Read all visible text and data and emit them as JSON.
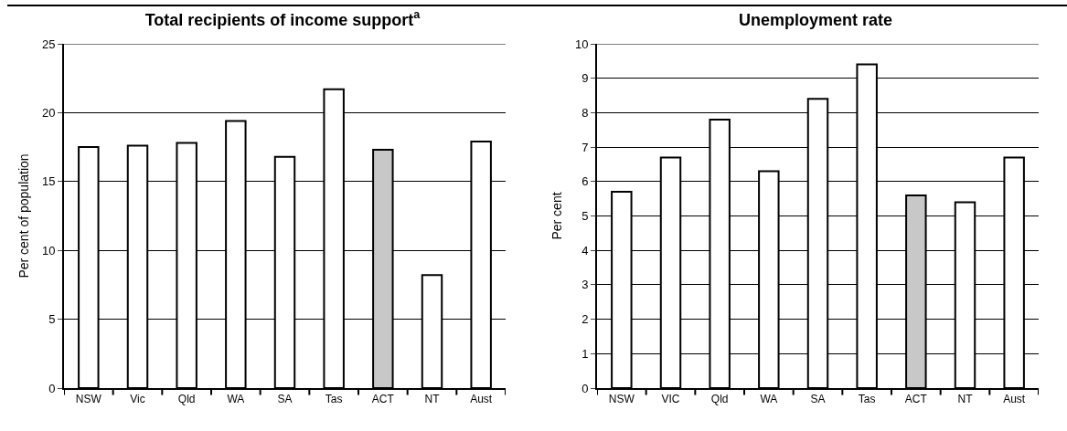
{
  "chart_data": [
    {
      "type": "bar",
      "title": "Total recipients of income support$^{a}$",
      "ylabel": "Per cent of population",
      "categories": [
        "NSW",
        "Vic",
        "Qld",
        "WA",
        "SA",
        "Tas",
        "ACT",
        "NT",
        "Aust"
      ],
      "values": [
        17.5,
        17.6,
        17.8,
        19.4,
        16.8,
        21.7,
        17.3,
        8.2,
        17.9
      ],
      "colors": [
        "#ffffff",
        "#ffffff",
        "#ffffff",
        "#ffffff",
        "#ffffff",
        "#ffffff",
        "#c8c8c8",
        "#ffffff",
        "#ffffff"
      ],
      "ylim": [
        0,
        25
      ],
      "yticks": [
        0,
        5,
        10,
        15,
        20,
        25
      ],
      "grid": "y"
    },
    {
      "type": "bar",
      "title": "Unemployment rate",
      "ylabel": "Per cent",
      "categories": [
        "NSW",
        "VIC",
        "Qld",
        "WA",
        "SA",
        "Tas",
        "ACT",
        "NT",
        "Aust"
      ],
      "values": [
        5.7,
        6.7,
        7.8,
        6.3,
        8.4,
        9.4,
        5.6,
        5.4,
        6.7
      ],
      "colors": [
        "#ffffff",
        "#ffffff",
        "#ffffff",
        "#ffffff",
        "#ffffff",
        "#ffffff",
        "#c8c8c8",
        "#ffffff",
        "#ffffff"
      ],
      "ylim": [
        0,
        10
      ],
      "yticks": [
        0,
        1,
        2,
        3,
        4,
        5,
        6,
        7,
        8,
        9,
        10
      ],
      "grid": "y"
    }
  ]
}
